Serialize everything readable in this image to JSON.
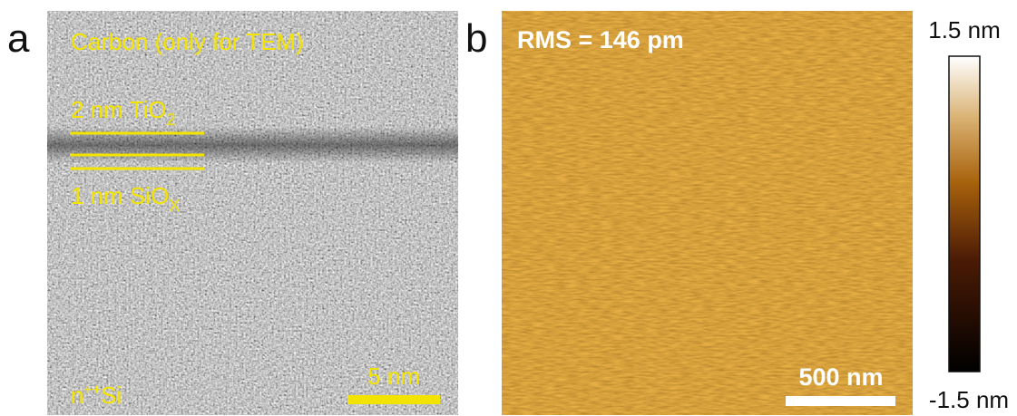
{
  "panel_a": {
    "label": "a",
    "layers": {
      "carbon": "Carbon  (only for TEM)",
      "tio2": {
        "text": "2 nm TiO",
        "sub": "2"
      },
      "siox": {
        "text": "1 nm SiO",
        "sub": "X"
      },
      "si": {
        "prefix": "n",
        "sup": "++",
        "text": "Si"
      }
    },
    "scale_bar": "5 nm"
  },
  "panel_b": {
    "label": "b",
    "rms": "RMS = 146 pm",
    "scale_bar": "500 nm",
    "colorbar": {
      "max": "1.5 nm",
      "min": "-1.5 nm"
    }
  }
}
